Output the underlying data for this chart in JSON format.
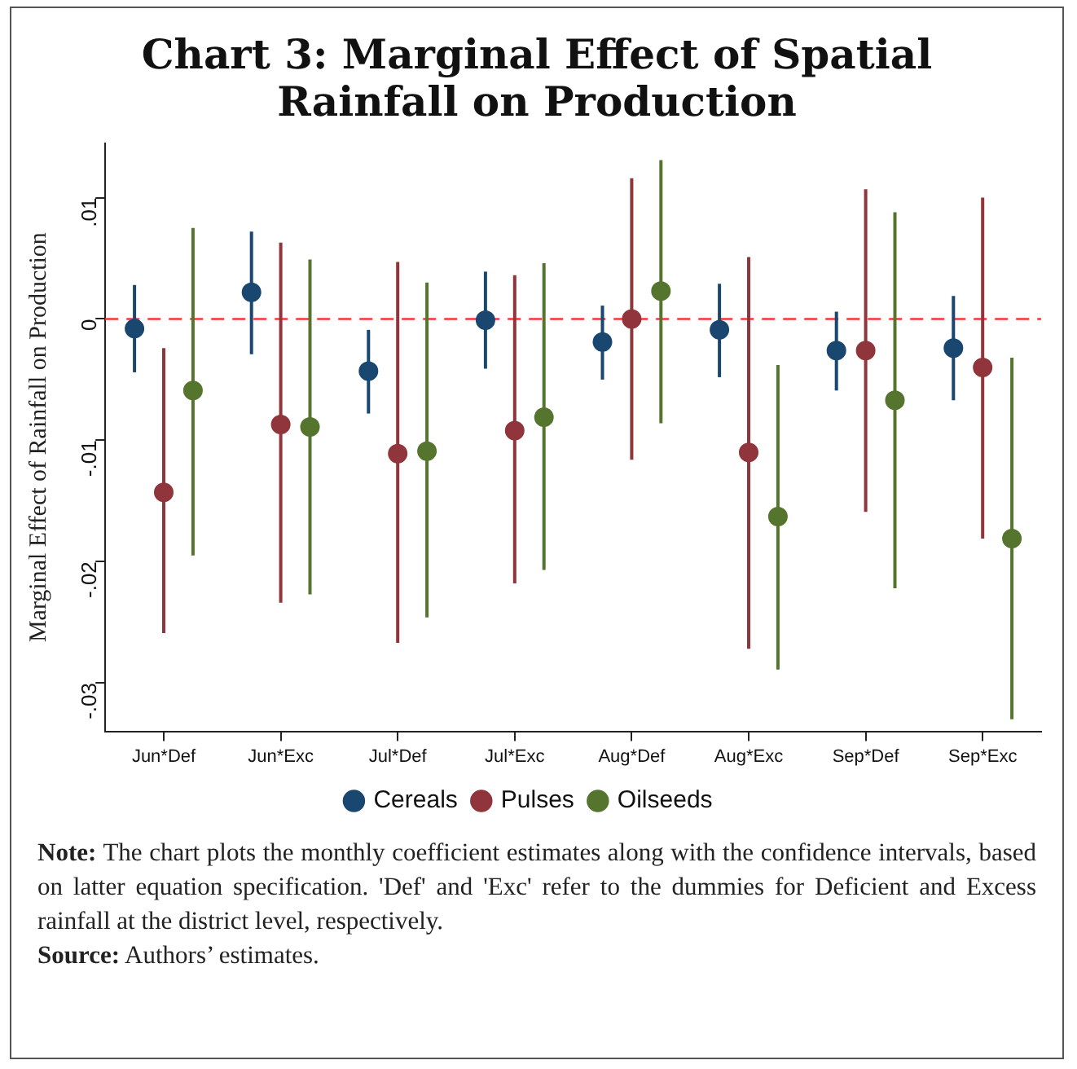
{
  "chart_data": {
    "type": "scatter",
    "title": "Chart 3: Marginal Effect of Spatial Rainfall on Production",
    "ylabel": "Marginal Effect of Rainfall on Production",
    "categories": [
      "Jun*Def",
      "Jun*Exc",
      "Jul*Def",
      "Jul*Exc",
      "Aug*Def",
      "Aug*Exc",
      "Sep*Def",
      "Sep*Exc"
    ],
    "series": [
      {
        "name": "Cereals",
        "color": "#1a476f",
        "values": [
          -0.0008,
          0.0022,
          -0.0043,
          -0.0001,
          -0.0019,
          -0.0009,
          -0.0026,
          -0.0024
        ],
        "errors": [
          [
            -0.0044,
            0.0028
          ],
          [
            -0.0029,
            0.0072
          ],
          [
            -0.0078,
            -0.0009
          ],
          [
            -0.0041,
            0.0039
          ],
          [
            -0.005,
            0.0011
          ],
          [
            -0.0048,
            0.0029
          ],
          [
            -0.0059,
            0.0006
          ],
          [
            -0.0067,
            0.0019
          ]
        ]
      },
      {
        "name": "Pulses",
        "color": "#90353b",
        "values": [
          -0.0143,
          -0.0087,
          -0.0111,
          -0.0092,
          0.0,
          -0.011,
          -0.0026,
          -0.004
        ],
        "errors": [
          [
            -0.0259,
            -0.0024
          ],
          [
            -0.0234,
            0.0063
          ],
          [
            -0.0267,
            0.0047
          ],
          [
            -0.0218,
            0.0036
          ],
          [
            -0.0116,
            0.0116
          ],
          [
            -0.0272,
            0.0051
          ],
          [
            -0.0159,
            0.0107
          ],
          [
            -0.0181,
            0.01
          ]
        ]
      },
      {
        "name": "Oilseeds",
        "color": "#55752f",
        "values": [
          -0.0059,
          -0.0089,
          -0.0109,
          -0.0081,
          0.0023,
          -0.0163,
          -0.0067,
          -0.0181
        ],
        "errors": [
          [
            -0.0195,
            0.0075
          ],
          [
            -0.0227,
            0.0049
          ],
          [
            -0.0246,
            0.003
          ],
          [
            -0.0207,
            0.0046
          ],
          [
            -0.0086,
            0.0131
          ],
          [
            -0.0289,
            -0.0038
          ],
          [
            -0.0222,
            0.0088
          ],
          [
            -0.033,
            -0.0032
          ]
        ]
      }
    ],
    "ylim": [
      -0.034,
      0.0145
    ],
    "yticks": [
      {
        "value": -0.03,
        "label": "-.03"
      },
      {
        "value": -0.02,
        "label": "-.02"
      },
      {
        "value": -0.01,
        "label": "-.01"
      },
      0,
      {
        "value": 0.01,
        "label": ".01"
      }
    ],
    "ref_lines": [
      {
        "axis": "y",
        "value": 0,
        "color": "#ff3333",
        "line_style": "dashed"
      }
    ],
    "grid": false,
    "legend": "bottom",
    "marker": "circle",
    "annotations": [
      "Note: The chart plots the monthly coefficient estimates  along with the confidence intervals, based on latter  equation specification. 'Def' and 'Exc' refer to the dummies for Deficient and Excess rainfall at the district level, respectively.",
      "Source: Authors’ estimates."
    ]
  }
}
